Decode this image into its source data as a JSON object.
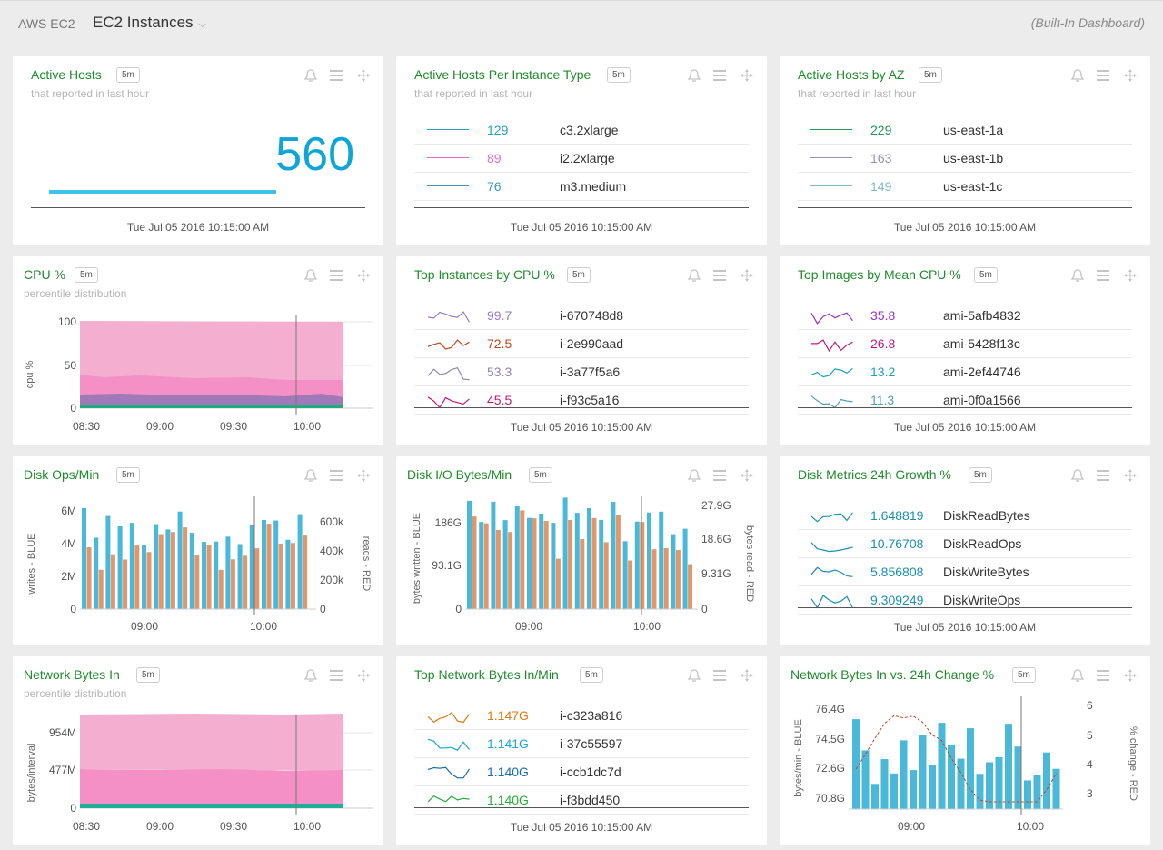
{
  "header": {
    "crumb": "AWS EC2",
    "dashboard": "EC2 Instances",
    "builtin": "(Built-In Dashboard)"
  },
  "ts": "Tue Jul 05 2016 10:15:00 AM",
  "icons": {
    "bell": "bell-icon",
    "menu": "menu-icon",
    "move": "move-icon",
    "chevron": "chevron-down-icon"
  },
  "colors": {
    "title": "#1f8c2b",
    "accent": "#0ea6d6",
    "blue": "#4ab9d9",
    "red": "#e0976b"
  },
  "cards": {
    "active_hosts": {
      "title": "Active Hosts",
      "badge": "5m",
      "sub": "that reported in last hour",
      "value": "560"
    },
    "per_type": {
      "title": "Active Hosts Per Instance Type",
      "badge": "5m",
      "sub": "that reported in last hour",
      "rows": [
        {
          "val": "129",
          "name": "c3.2xlarge",
          "color": "#2a9fc4"
        },
        {
          "val": "89",
          "name": "i2.2xlarge",
          "color": "#e86cc6"
        },
        {
          "val": "76",
          "name": "m3.medium",
          "color": "#3a9ab5"
        }
      ]
    },
    "by_az": {
      "title": "Active Hosts by AZ",
      "badge": "5m",
      "sub": "that reported in last hour",
      "rows": [
        {
          "val": "229",
          "name": "us-east-1a",
          "color": "#1e9a55"
        },
        {
          "val": "163",
          "name": "us-east-1b",
          "color": "#9a8fb7"
        },
        {
          "val": "149",
          "name": "us-east-1c",
          "color": "#7fb9c8"
        }
      ]
    },
    "cpu": {
      "title": "CPU %",
      "badge": "5m",
      "sub": "percentile distribution",
      "ylabel": "cpu %",
      "yticks": [
        "100",
        "50",
        "0"
      ],
      "xticks": [
        "08:30",
        "09:00",
        "09:30",
        "10:00"
      ]
    },
    "top_cpu": {
      "title": "Top Instances by CPU %",
      "badge": "5m",
      "rows": [
        {
          "val": "99.7",
          "name": "i-670748d8",
          "color": "#9a79c7"
        },
        {
          "val": "72.5",
          "name": "i-2e990aad",
          "color": "#c0471d"
        },
        {
          "val": "53.3",
          "name": "i-3a77f5a6",
          "color": "#8f86b0"
        },
        {
          "val": "45.5",
          "name": "i-f93c5a16",
          "color": "#c01a79"
        }
      ]
    },
    "top_images": {
      "title": "Top Images by Mean CPU %",
      "badge": "5m",
      "rows": [
        {
          "val": "35.8",
          "name": "ami-5afb4832",
          "color": "#9b2fc0"
        },
        {
          "val": "26.8",
          "name": "ami-5428f13c",
          "color": "#c01a79"
        },
        {
          "val": "13.2",
          "name": "ami-2ef44746",
          "color": "#1aa0c4"
        },
        {
          "val": "11.3",
          "name": "ami-0f0a1566",
          "color": "#4aa3bb"
        }
      ]
    },
    "disk_ops": {
      "title": "Disk Ops/Min",
      "badge": "5m",
      "ylabel_left": "writes - BLUE",
      "ylabel_right": "reads - RED",
      "yticks_left": [
        "6M",
        "4M",
        "2M",
        "0"
      ],
      "yticks_right": [
        "600k",
        "400k",
        "200k",
        "0"
      ],
      "xticks": [
        "09:00",
        "10:00"
      ]
    },
    "disk_io": {
      "title": "Disk I/O Bytes/Min",
      "badge": "5m",
      "ylabel_left": "bytes written - BLUE",
      "ylabel_right": "bytes read - RED",
      "yticks_left": [
        "186G",
        "93.1G",
        "0"
      ],
      "yticks_right": [
        "27.9G",
        "18.6G",
        "9.31G",
        "0"
      ],
      "xticks": [
        "09:00",
        "10:00"
      ]
    },
    "disk_growth": {
      "title": "Disk Metrics 24h Growth %",
      "badge": "5m",
      "rows": [
        {
          "val": "1.648819",
          "name": "DiskReadBytes",
          "color": "#1a8fb4"
        },
        {
          "val": "10.76708",
          "name": "DiskReadOps",
          "color": "#1a8fb4"
        },
        {
          "val": "5.856808",
          "name": "DiskWriteBytes",
          "color": "#1a8fb4"
        },
        {
          "val": "9.309249",
          "name": "DiskWriteOps",
          "color": "#1a8fb4"
        }
      ]
    },
    "net_in": {
      "title": "Network Bytes In",
      "badge": "5m",
      "sub": "percentile distribution",
      "ylabel": "bytes/interval",
      "yticks": [
        "954M",
        "477M",
        "0"
      ],
      "xticks": [
        "08:30",
        "09:00",
        "09:30",
        "10:00"
      ]
    },
    "top_net": {
      "title": "Top Network Bytes In/Min",
      "badge": "5m",
      "rows": [
        {
          "val": "1.147G",
          "name": "i-c323a816",
          "color": "#e07a12"
        },
        {
          "val": "1.141G",
          "name": "i-37c55597",
          "color": "#1aa9d1"
        },
        {
          "val": "1.140G",
          "name": "i-ccb1dc7d",
          "color": "#1a6fa8"
        },
        {
          "val": "1.140G",
          "name": "i-f3bdd450",
          "color": "#22b036"
        }
      ]
    },
    "net_change": {
      "title": "Network Bytes In vs. 24h Change %",
      "badge": "5m",
      "ylabel_left": "bytes/min - BLUE",
      "ylabel_right": "% change - RED",
      "yticks_left": [
        "76.4G",
        "74.5G",
        "72.6G",
        "70.8G"
      ],
      "yticks_right": [
        "6",
        "5",
        "4",
        "3"
      ],
      "xticks": [
        "09:00",
        "10:00"
      ]
    }
  }
}
